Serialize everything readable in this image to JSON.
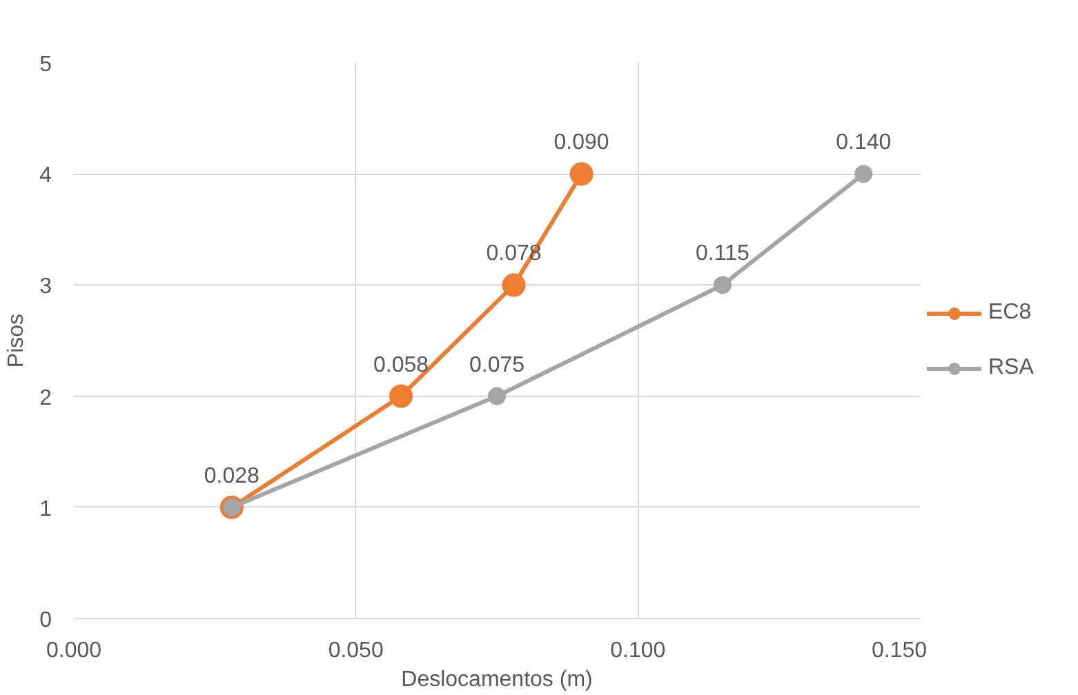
{
  "chart_data": {
    "type": "line",
    "orientation": "horizontal",
    "xlabel": "Deslocamentos (m)",
    "ylabel": "Pisos",
    "xlim": [
      0,
      0.15
    ],
    "xticks": [
      {
        "value": 0,
        "label": "0.000"
      },
      {
        "value": 0.05,
        "label": "0.050"
      },
      {
        "value": 0.1,
        "label": "0.100"
      },
      {
        "value": 0.15,
        "label": "0.150"
      }
    ],
    "ylim": [
      0,
      5
    ],
    "yticks": [
      0,
      1,
      2,
      3,
      4,
      5
    ],
    "grid": true,
    "legend": "right",
    "marker": "circle",
    "line_style": "solid",
    "series": [
      {
        "name": "EC8",
        "color": "#ed7d31",
        "x": [
          1,
          2,
          3,
          4
        ],
        "values": [
          0.028,
          0.058,
          0.078,
          0.09
        ],
        "value_labels": [
          null,
          "0.058",
          "0.078",
          "0.090"
        ]
      },
      {
        "name": "RSA",
        "color": "#a5a5a5",
        "x": [
          1,
          2,
          3,
          4
        ],
        "values": [
          0.028,
          0.075,
          0.115,
          0.14
        ],
        "value_labels": [
          "0.028",
          "0.075",
          "0.115",
          "0.140"
        ]
      }
    ]
  }
}
